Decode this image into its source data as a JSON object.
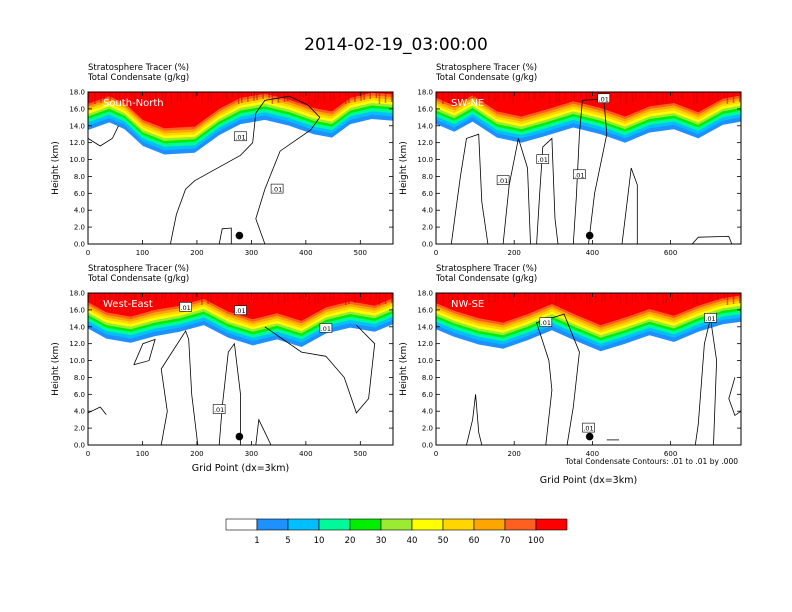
{
  "title": "2014-02-19_03:00:00",
  "footnote": "Total Condensate Contours: .01 to .01 by .000",
  "colorbar": {
    "labels": [
      "1",
      "5",
      "10",
      "20",
      "30",
      "40",
      "50",
      "60",
      "70",
      "100"
    ],
    "colors": [
      "#ffffff",
      "#1e90ff",
      "#00bfff",
      "#00fa9a",
      "#00ee00",
      "#9aeb31",
      "#ffff00",
      "#ffd700",
      "#ffa500",
      "#ff6020",
      "#ff0000"
    ]
  },
  "chart_data": [
    {
      "type": "contour",
      "panel_label": "South-North",
      "header": [
        "Stratosphere Tracer   (%)",
        "Total Condensate   (g/kg)"
      ],
      "ylabel": "Height (km)",
      "xlabel": "",
      "xlim": [
        0,
        560
      ],
      "ylim": [
        0,
        18
      ],
      "xticks": [
        "0",
        "100",
        "200",
        "300",
        "400",
        "500"
      ],
      "yticks": [
        "0.0",
        "2.0",
        "4.0",
        "6.0",
        "8.0",
        "10.0",
        "12.0",
        "14.0",
        "16.0",
        "18.0"
      ],
      "contour_labels": [
        ".01",
        ".01"
      ],
      "marker": {
        "x": 278,
        "y": 1.0
      }
    },
    {
      "type": "contour",
      "panel_label": "SW-NE",
      "header": [
        "Stratosphere Tracer   (%)",
        "Total Condensate   (g/kg)"
      ],
      "ylabel": "Height (km)",
      "xlabel": "",
      "xlim": [
        0,
        780
      ],
      "ylim": [
        0,
        18
      ],
      "xticks": [
        "0",
        "200",
        "400",
        "600"
      ],
      "yticks": [
        "0.0",
        "2.0",
        "4.0",
        "6.0",
        "8.0",
        "10.0",
        "12.0",
        "14.0",
        "16.0",
        "18.0"
      ],
      "contour_labels": [
        ".01",
        ".01",
        ".01",
        ".01"
      ],
      "marker": {
        "x": 393,
        "y": 1.0
      }
    },
    {
      "type": "contour",
      "panel_label": "West-East",
      "header": [
        "Stratosphere Tracer   (%)",
        "Total Condensate   (g/kg)"
      ],
      "ylabel": "Height (km)",
      "xlabel": "Grid Point (dx=3km)",
      "xlim": [
        0,
        560
      ],
      "ylim": [
        0,
        18
      ],
      "xticks": [
        "0",
        "100",
        "200",
        "300",
        "400",
        "500"
      ],
      "yticks": [
        "0.0",
        "2.0",
        "4.0",
        "6.0",
        "8.0",
        "10.0",
        "12.0",
        "14.0",
        "16.0",
        "18.0"
      ],
      "contour_labels": [
        ".01",
        ".01",
        ".01",
        ".01"
      ],
      "marker": {
        "x": 278,
        "y": 1.0
      }
    },
    {
      "type": "contour",
      "panel_label": "NW-SE",
      "header": [
        "Stratosphere Tracer   (%)",
        "Total Condensate   (g/kg)"
      ],
      "ylabel": "Height (km)",
      "xlabel": "Grid Point (dx=3km)",
      "xlim": [
        0,
        780
      ],
      "ylim": [
        0,
        18
      ],
      "xticks": [
        "0",
        "200",
        "400",
        "600"
      ],
      "yticks": [
        "0.0",
        "2.0",
        "4.0",
        "6.0",
        "8.0",
        "10.0",
        "12.0",
        "14.0",
        "16.0",
        "18.0"
      ],
      "contour_labels": [
        ".01",
        ".01",
        ".01"
      ],
      "marker": {
        "x": 393,
        "y": 1.0
      }
    }
  ]
}
